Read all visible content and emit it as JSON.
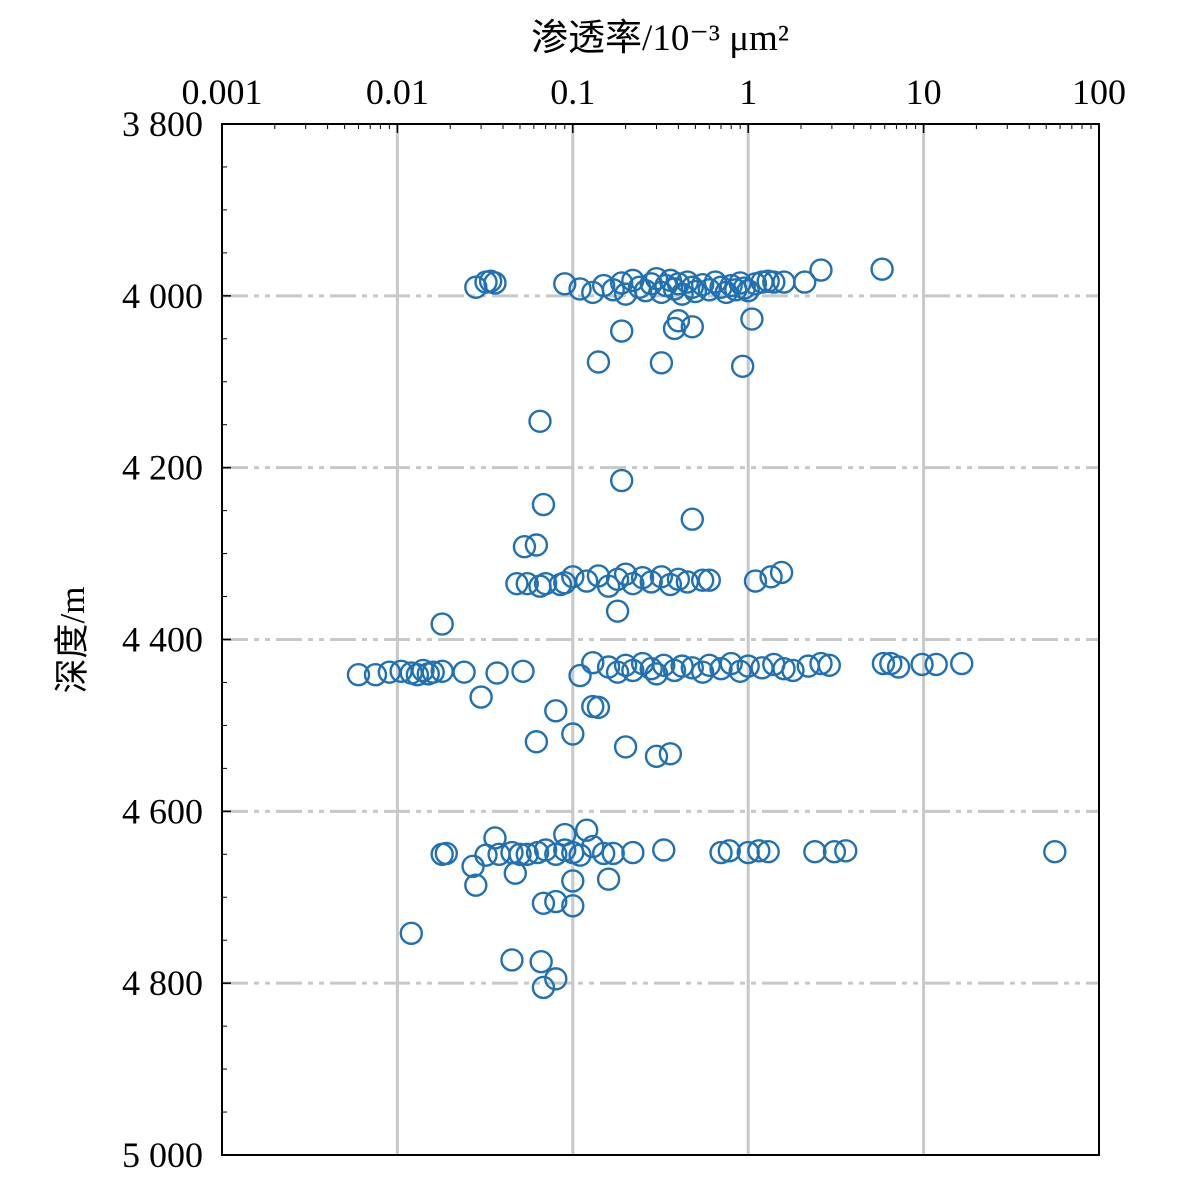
{
  "chart_data": {
    "type": "scatter",
    "title": "",
    "xlabel": "渗透率/10⁻³ μm²",
    "ylabel": "深度/m",
    "x_scale": "log",
    "xlim": [
      0.001,
      100
    ],
    "ylim": [
      3800,
      5000
    ],
    "y_inverted": true,
    "x_axis_position": "top",
    "grid": true,
    "x_ticks": [
      "0.001",
      "0.01",
      "0.1",
      "1",
      "10",
      "100"
    ],
    "y_ticks": [
      "3 800",
      "4 000",
      "4 200",
      "4 400",
      "4 600",
      "4 800",
      "5 000"
    ],
    "marker": "open-circle",
    "marker_color": "#2070b4",
    "series": [
      {
        "points": [
          [
            0.028,
            3990
          ],
          [
            0.032,
            3984
          ],
          [
            0.036,
            3985
          ],
          [
            0.034,
            3983
          ],
          [
            0.09,
            3986
          ],
          [
            0.11,
            3992
          ],
          [
            0.13,
            3996
          ],
          [
            0.15,
            3988
          ],
          [
            0.17,
            3993
          ],
          [
            0.19,
            3985
          ],
          [
            0.2,
            3998
          ],
          [
            0.22,
            3982
          ],
          [
            0.24,
            3990
          ],
          [
            0.26,
            3994
          ],
          [
            0.28,
            3986
          ],
          [
            0.3,
            3980
          ],
          [
            0.32,
            3996
          ],
          [
            0.34,
            3988
          ],
          [
            0.36,
            3982
          ],
          [
            0.38,
            3992
          ],
          [
            0.4,
            3986
          ],
          [
            0.42,
            3998
          ],
          [
            0.45,
            3984
          ],
          [
            0.48,
            3990
          ],
          [
            0.5,
            3995
          ],
          [
            0.55,
            3987
          ],
          [
            0.6,
            3993
          ],
          [
            0.65,
            3984
          ],
          [
            0.7,
            3990
          ],
          [
            0.75,
            3996
          ],
          [
            0.8,
            3988
          ],
          [
            0.85,
            3993
          ],
          [
            0.9,
            3985
          ],
          [
            0.95,
            3991
          ],
          [
            1.0,
            3994
          ],
          [
            1.1,
            3986
          ],
          [
            1.2,
            3984
          ],
          [
            1.3,
            3983
          ],
          [
            1.4,
            3984
          ],
          [
            1.6,
            3984
          ],
          [
            2.1,
            3984
          ],
          [
            2.6,
            3970
          ],
          [
            5.8,
            3969
          ],
          [
            0.4,
            4029
          ],
          [
            0.38,
            4038
          ],
          [
            0.48,
            4036
          ],
          [
            1.05,
            4027
          ],
          [
            0.19,
            4041
          ],
          [
            0.14,
            4077
          ],
          [
            0.32,
            4078
          ],
          [
            0.93,
            4082
          ],
          [
            0.065,
            4146
          ],
          [
            0.19,
            4215
          ],
          [
            0.068,
            4243
          ],
          [
            0.48,
            4260
          ],
          [
            0.053,
            4292
          ],
          [
            0.062,
            4290
          ],
          [
            0.055,
            4335
          ],
          [
            0.07,
            4335
          ],
          [
            0.09,
            4334
          ],
          [
            0.1,
            4327
          ],
          [
            0.12,
            4332
          ],
          [
            0.14,
            4326
          ],
          [
            0.16,
            4338
          ],
          [
            0.18,
            4330
          ],
          [
            0.2,
            4324
          ],
          [
            0.22,
            4335
          ],
          [
            0.25,
            4328
          ],
          [
            0.28,
            4333
          ],
          [
            0.32,
            4327
          ],
          [
            0.36,
            4336
          ],
          [
            0.4,
            4330
          ],
          [
            0.45,
            4333
          ],
          [
            0.55,
            4331
          ],
          [
            0.6,
            4331
          ],
          [
            0.048,
            4335
          ],
          [
            0.085,
            4336
          ],
          [
            0.065,
            4338
          ],
          [
            1.1,
            4332
          ],
          [
            1.35,
            4327
          ],
          [
            1.55,
            4322
          ],
          [
            0.18,
            4367
          ],
          [
            0.018,
            4382
          ],
          [
            0.006,
            4441
          ],
          [
            0.0075,
            4441
          ],
          [
            0.009,
            4438
          ],
          [
            0.0105,
            4437
          ],
          [
            0.012,
            4439
          ],
          [
            0.013,
            4441
          ],
          [
            0.014,
            4436
          ],
          [
            0.015,
            4440
          ],
          [
            0.016,
            4438
          ],
          [
            0.018,
            4437
          ],
          [
            0.024,
            4438
          ],
          [
            0.037,
            4439
          ],
          [
            0.052,
            4437
          ],
          [
            0.11,
            4442
          ],
          [
            0.13,
            4427
          ],
          [
            0.16,
            4432
          ],
          [
            0.18,
            4438
          ],
          [
            0.2,
            4430
          ],
          [
            0.22,
            4436
          ],
          [
            0.25,
            4428
          ],
          [
            0.28,
            4434
          ],
          [
            0.3,
            4440
          ],
          [
            0.33,
            4430
          ],
          [
            0.38,
            4436
          ],
          [
            0.42,
            4431
          ],
          [
            0.48,
            4433
          ],
          [
            0.55,
            4438
          ],
          [
            0.6,
            4430
          ],
          [
            0.7,
            4434
          ],
          [
            0.8,
            4428
          ],
          [
            0.9,
            4437
          ],
          [
            1.0,
            4431
          ],
          [
            1.2,
            4433
          ],
          [
            1.4,
            4429
          ],
          [
            1.6,
            4434
          ],
          [
            1.8,
            4436
          ],
          [
            2.2,
            4431
          ],
          [
            2.6,
            4428
          ],
          [
            2.9,
            4430
          ],
          [
            5.9,
            4428
          ],
          [
            6.5,
            4428
          ],
          [
            7.2,
            4432
          ],
          [
            9.8,
            4429
          ],
          [
            11.8,
            4429
          ],
          [
            16.5,
            4428
          ],
          [
            0.03,
            4467
          ],
          [
            0.08,
            4483
          ],
          [
            0.13,
            4478
          ],
          [
            0.14,
            4479
          ],
          [
            0.062,
            4519
          ],
          [
            0.1,
            4510
          ],
          [
            0.2,
            4525
          ],
          [
            0.3,
            4536
          ],
          [
            0.36,
            4533
          ],
          [
            0.036,
            4631
          ],
          [
            0.12,
            4622
          ],
          [
            0.09,
            4627
          ],
          [
            0.018,
            4650
          ],
          [
            0.019,
            4649
          ],
          [
            0.027,
            4664
          ],
          [
            0.032,
            4651
          ],
          [
            0.038,
            4650
          ],
          [
            0.045,
            4648
          ],
          [
            0.05,
            4650
          ],
          [
            0.055,
            4650
          ],
          [
            0.063,
            4648
          ],
          [
            0.07,
            4645
          ],
          [
            0.08,
            4650
          ],
          [
            0.09,
            4645
          ],
          [
            0.1,
            4648
          ],
          [
            0.11,
            4651
          ],
          [
            0.13,
            4641
          ],
          [
            0.15,
            4649
          ],
          [
            0.17,
            4649
          ],
          [
            0.22,
            4648
          ],
          [
            0.33,
            4645
          ],
          [
            0.7,
            4648
          ],
          [
            0.78,
            4646
          ],
          [
            1.0,
            4648
          ],
          [
            1.15,
            4646
          ],
          [
            1.3,
            4647
          ],
          [
            2.4,
            4647
          ],
          [
            3.1,
            4647
          ],
          [
            3.6,
            4646
          ],
          [
            56,
            4647
          ],
          [
            0.028,
            4686
          ],
          [
            0.047,
            4672
          ],
          [
            0.1,
            4681
          ],
          [
            0.16,
            4679
          ],
          [
            0.068,
            4707
          ],
          [
            0.08,
            4705
          ],
          [
            0.1,
            4710
          ],
          [
            0.012,
            4742
          ],
          [
            0.045,
            4773
          ],
          [
            0.066,
            4775
          ],
          [
            0.08,
            4795
          ],
          [
            0.068,
            4805
          ]
        ]
      }
    ]
  }
}
